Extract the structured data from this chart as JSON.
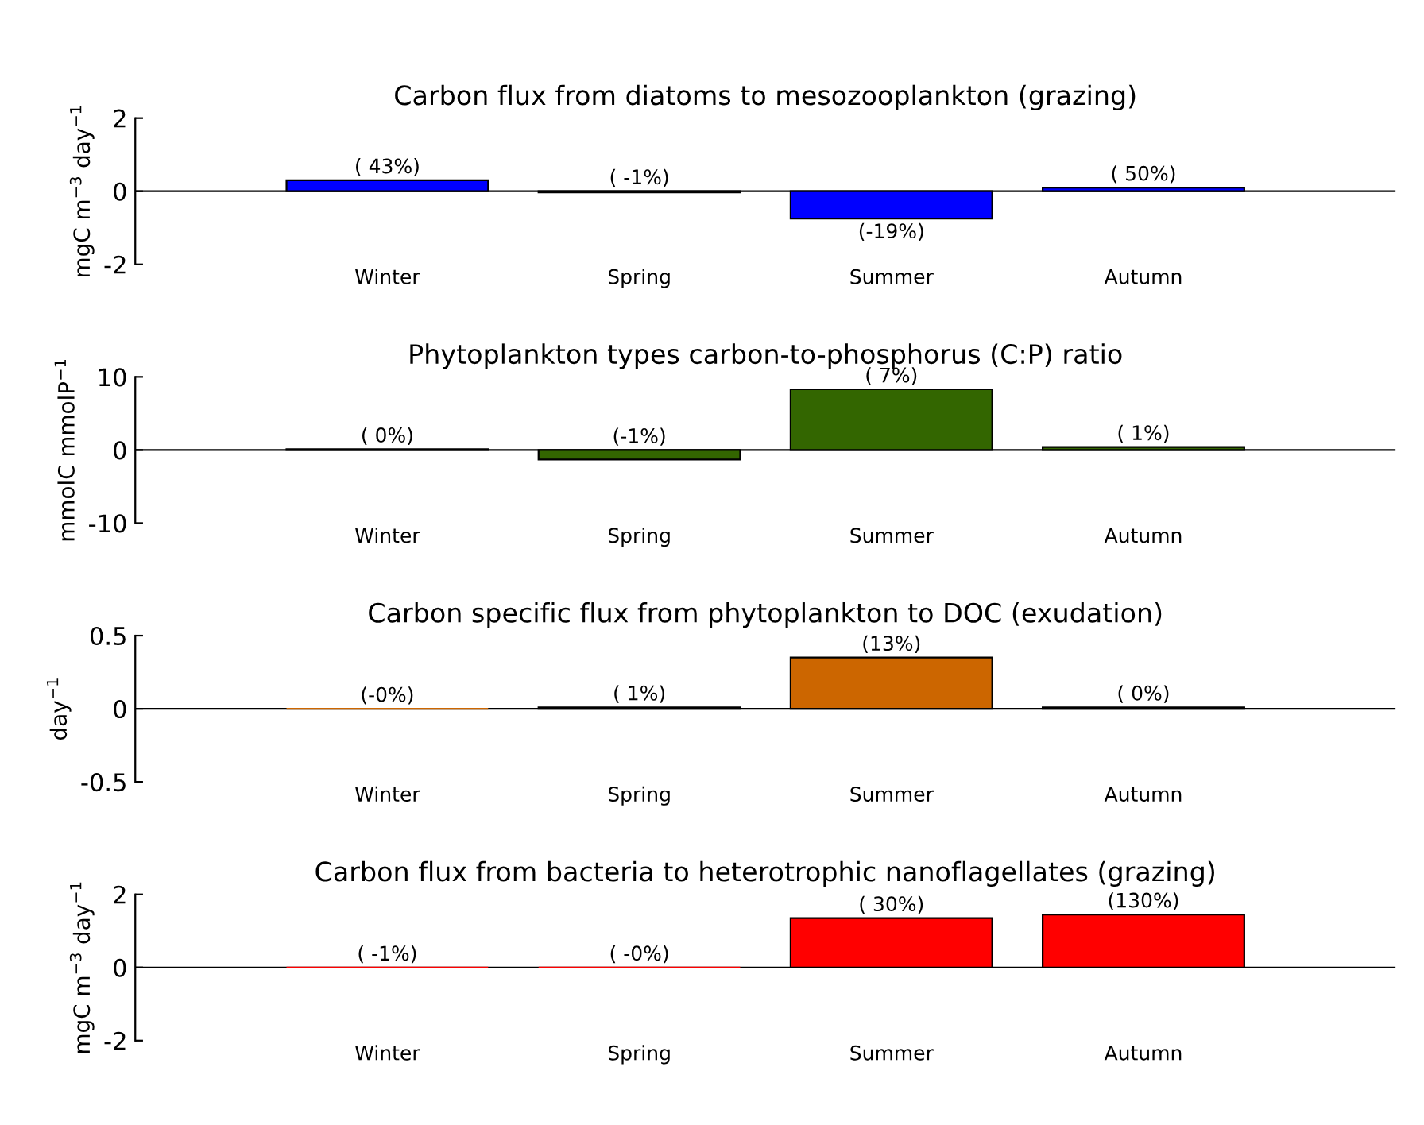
{
  "chart_data": [
    {
      "type": "bar",
      "title": "Carbon flux from diatoms to mesozooplankton (grazing)",
      "ylabel": "mgC m$^{−3}$ day$^{−1}$",
      "categories": [
        "Winter",
        "Spring",
        "Summer",
        "Autumn"
      ],
      "values": [
        0.3,
        -0.03,
        -0.75,
        0.1
      ],
      "color": "#0000ff",
      "annotations": [
        {
          "text": "( 43%)",
          "x": "Winter",
          "y": 0.3
        },
        {
          "text": "( -1%)",
          "x": "Spring",
          "y": -0.03
        },
        {
          "text": "(-19%)",
          "x": "Summer",
          "y": -0.75
        },
        {
          "text": "( 50%)",
          "x": "Autumn",
          "y": 0.1
        }
      ],
      "ylim": [
        -2,
        2
      ],
      "yticks": [
        -2,
        0,
        2
      ],
      "ref_lines": [
        {
          "axis": "y",
          "value": 0,
          "color": "#000000"
        }
      ]
    },
    {
      "type": "bar",
      "title": "Phytoplankton types carbon-to-phosphorus (C:P) ratio",
      "ylabel": "mmolC mmolP$^{−1}$",
      "categories": [
        "Winter",
        "Spring",
        "Summer",
        "Autumn"
      ],
      "values": [
        0.1,
        -1.3,
        8.3,
        0.4
      ],
      "color": "#336600",
      "annotations": [
        {
          "text": "( 0%)",
          "x": "Winter",
          "y": 0.1
        },
        {
          "text": "(-1%)",
          "x": "Spring",
          "y": -1.3
        },
        {
          "text": "( 7%)",
          "x": "Summer",
          "y": 8.3
        },
        {
          "text": "( 1%)",
          "x": "Autumn",
          "y": 0.4
        }
      ],
      "ylim": [
        -10,
        10
      ],
      "yticks": [
        -10,
        0,
        10
      ],
      "ref_lines": [
        {
          "axis": "y",
          "value": 0,
          "color": "#000000"
        }
      ]
    },
    {
      "type": "bar",
      "title": "Carbon specific flux from phytoplankton to DOC (exudation)",
      "ylabel": "day$^{−1}$",
      "categories": [
        "Winter",
        "Spring",
        "Summer",
        "Autumn"
      ],
      "values": [
        0,
        0.01,
        0.35,
        0.01
      ],
      "color": "#cc6600",
      "annotations": [
        {
          "text": "(-0%)",
          "x": "Winter",
          "y": 0
        },
        {
          "text": "( 1%)",
          "x": "Spring",
          "y": 0.01
        },
        {
          "text": "(13%)",
          "x": "Summer",
          "y": 0.35
        },
        {
          "text": "( 0%)",
          "x": "Autumn",
          "y": 0.01
        }
      ],
      "ylim": [
        -0.5,
        0.5
      ],
      "yticks": [
        -0.5,
        0,
        0.5
      ],
      "ref_lines": [
        {
          "axis": "y",
          "value": 0,
          "color": "#000000"
        }
      ]
    },
    {
      "type": "bar",
      "title": "Carbon flux from bacteria to heterotrophic nanoflagellates (grazing)",
      "ylabel": "mgC m$^{−3}$ day$^{−1}$",
      "categories": [
        "Winter",
        "Spring",
        "Summer",
        "Autumn"
      ],
      "values": [
        0,
        0,
        1.35,
        1.45
      ],
      "color": "#ff0000",
      "annotations": [
        {
          "text": "( -1%)",
          "x": "Winter",
          "y": 0
        },
        {
          "text": "( -0%)",
          "x": "Spring",
          "y": 0
        },
        {
          "text": "( 30%)",
          "x": "Summer",
          "y": 1.35
        },
        {
          "text": "(130%)",
          "x": "Autumn",
          "y": 1.45
        }
      ],
      "ylim": [
        -2,
        2
      ],
      "yticks": [
        -2,
        0,
        2
      ],
      "ref_lines": [
        {
          "axis": "y",
          "value": 0,
          "color": "#000000"
        }
      ]
    }
  ]
}
